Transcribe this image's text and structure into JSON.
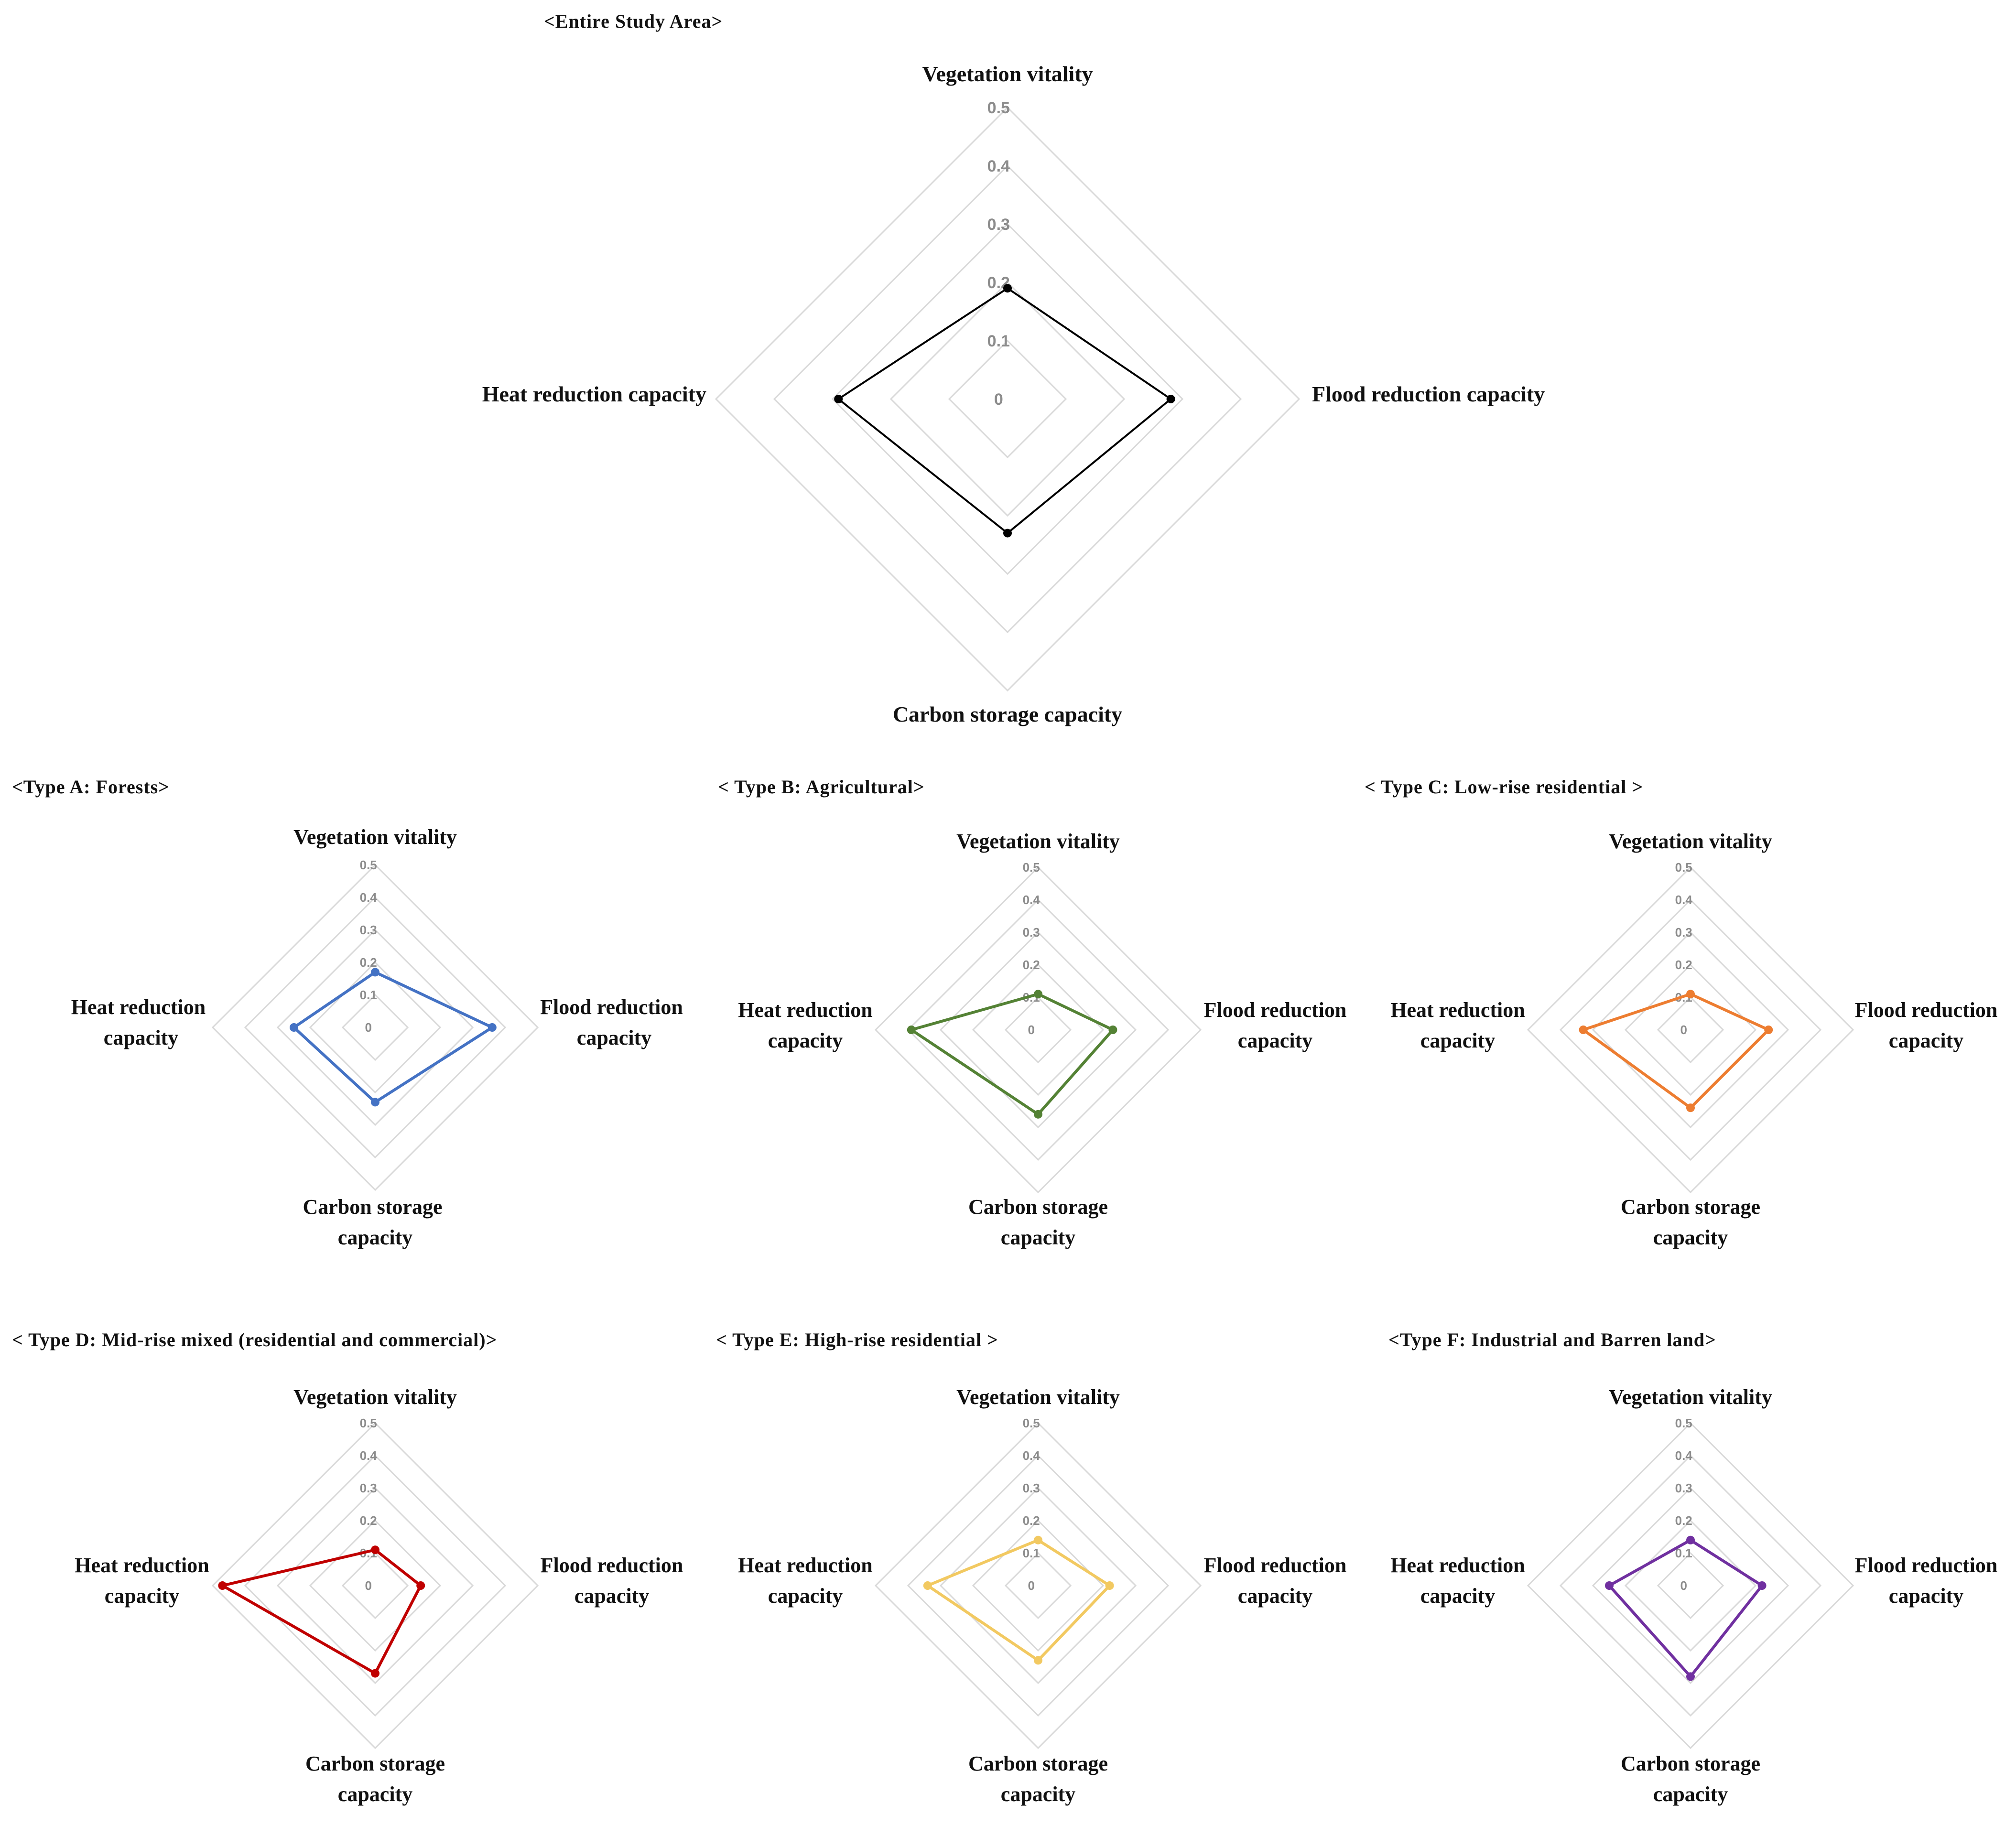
{
  "chart_data": [
    {
      "type": "radar",
      "title": "<Entire Study Area>",
      "axes": [
        "Vegetation vitality",
        "Flood reduction capacity",
        "Carbon storage capacity",
        "Heat reduction capacity"
      ],
      "ticks": [
        "0",
        "0.1",
        "0.2",
        "0.3",
        "0.4",
        "0.5"
      ],
      "range": [
        0,
        0.5
      ],
      "grid": true,
      "series": [
        {
          "name": "Entire Study Area",
          "color": "#000000",
          "values": [
            0.19,
            0.28,
            0.23,
            0.29
          ]
        }
      ]
    },
    {
      "type": "radar",
      "title": "<Type A: Forests>",
      "axes": [
        "Vegetation vitality",
        "Flood reduction capacity",
        "Carbon storage capacity",
        "Heat reduction capacity"
      ],
      "ticks": [
        "0",
        "0.1",
        "0.2",
        "0.3",
        "0.4",
        "0.5"
      ],
      "range": [
        0,
        0.5
      ],
      "grid": true,
      "series": [
        {
          "name": "Type A",
          "color": "#4472C4",
          "values": [
            0.17,
            0.36,
            0.23,
            0.25
          ]
        }
      ]
    },
    {
      "type": "radar",
      "title": "< Type B: Agricultural>",
      "axes": [
        "Vegetation vitality",
        "Flood reduction capacity",
        "Carbon storage capacity",
        "Heat reduction capacity"
      ],
      "ticks": [
        "0",
        "0.1",
        "0.2",
        "0.3",
        "0.4",
        "0.5"
      ],
      "range": [
        0,
        0.5
      ],
      "grid": true,
      "series": [
        {
          "name": "Type B",
          "color": "#548235",
          "values": [
            0.11,
            0.23,
            0.26,
            0.39
          ]
        }
      ]
    },
    {
      "type": "radar",
      "title": "< Type C: Low-rise residential >",
      "axes": [
        "Vegetation vitality",
        "Flood reduction capacity",
        "Carbon storage capacity",
        "Heat reduction capacity"
      ],
      "ticks": [
        "0",
        "0.1",
        "0.2",
        "0.3",
        "0.4",
        "0.5"
      ],
      "range": [
        0,
        0.5
      ],
      "grid": true,
      "series": [
        {
          "name": "Type C",
          "color": "#ED7D31",
          "values": [
            0.11,
            0.24,
            0.24,
            0.33
          ]
        }
      ]
    },
    {
      "type": "radar",
      "title": "< Type D: Mid-rise mixed (residential and commercial)>",
      "axes": [
        "Vegetation vitality",
        "Flood reduction capacity",
        "Carbon storage capacity",
        "Heat reduction capacity"
      ],
      "ticks": [
        "0",
        "0.1",
        "0.2",
        "0.3",
        "0.4",
        "0.5"
      ],
      "range": [
        0,
        0.5
      ],
      "grid": true,
      "series": [
        {
          "name": "Type D",
          "color": "#C00000",
          "values": [
            0.11,
            0.14,
            0.27,
            0.47
          ]
        }
      ]
    },
    {
      "type": "radar",
      "title": "< Type E: High-rise residential >",
      "axes": [
        "Vegetation vitality",
        "Flood reduction capacity",
        "Carbon storage capacity",
        "Heat reduction capacity"
      ],
      "ticks": [
        "0",
        "0.1",
        "0.2",
        "0.3",
        "0.4",
        "0.5"
      ],
      "range": [
        0,
        0.5
      ],
      "grid": true,
      "series": [
        {
          "name": "Type E",
          "color": "#F2C961",
          "values": [
            0.14,
            0.22,
            0.23,
            0.34
          ]
        }
      ]
    },
    {
      "type": "radar",
      "title": "<Type F: Industrial and Barren land>",
      "axes": [
        "Vegetation vitality",
        "Flood reduction capacity",
        "Carbon storage capacity",
        "Heat reduction capacity"
      ],
      "ticks": [
        "0",
        "0.1",
        "0.2",
        "0.3",
        "0.4",
        "0.5"
      ],
      "range": [
        0,
        0.5
      ],
      "grid": true,
      "series": [
        {
          "name": "Type F",
          "color": "#7030A0",
          "values": [
            0.14,
            0.22,
            0.28,
            0.25
          ]
        }
      ]
    }
  ]
}
